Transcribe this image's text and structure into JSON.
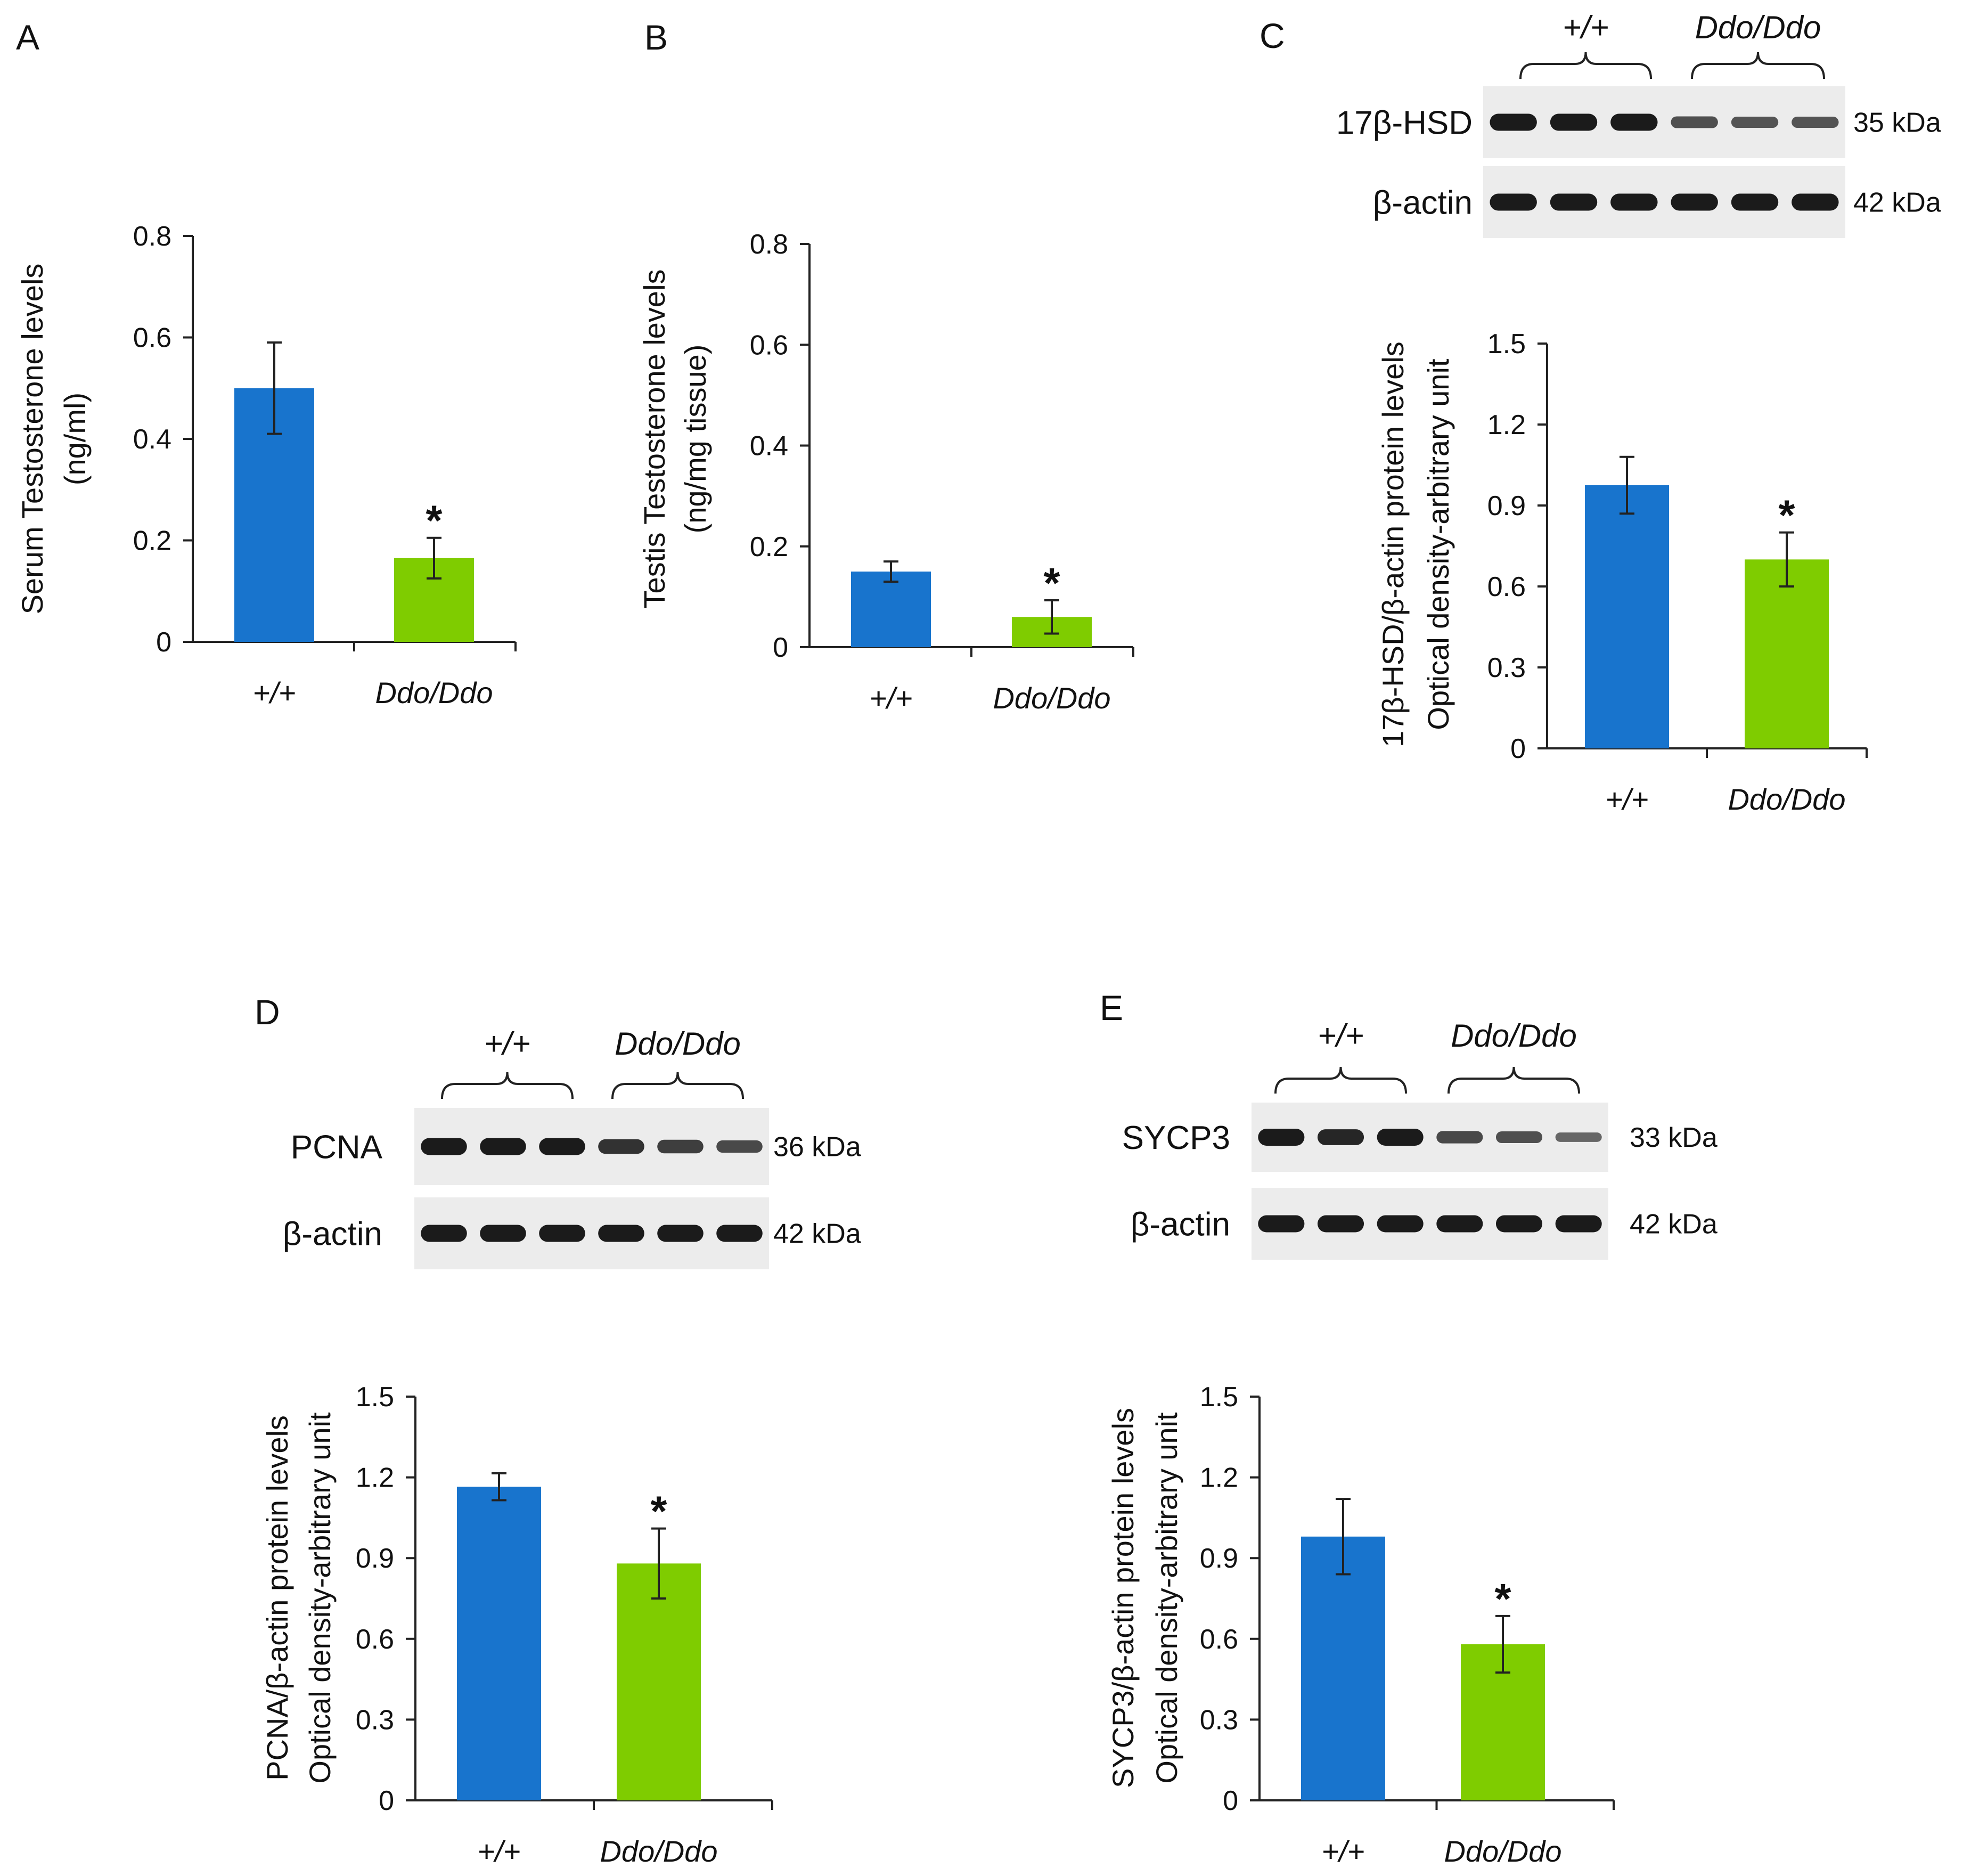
{
  "colors": {
    "wt": "#1874CD",
    "mut": "#7FCC00",
    "axis": "#222222",
    "band": "#1b1b1b",
    "membrane": "#ececec"
  },
  "genotypes": [
    "+/+",
    "Ddo/Ddo"
  ],
  "chart_data": [
    {
      "id": "A",
      "type": "bar",
      "letter": "A",
      "ylabel": [
        "Serum Testosterone levels",
        "(ng/ml)"
      ],
      "categories": [
        "+/+",
        "Ddo/Ddo"
      ],
      "values": [
        0.5,
        0.165
      ],
      "errors": [
        0.09,
        0.04
      ],
      "significance": [
        "",
        "*"
      ],
      "ylim": [
        0,
        0.8
      ],
      "ticks": [
        0,
        0.2,
        0.4,
        0.6,
        0.8
      ],
      "tick_labels": [
        "0",
        "0.2",
        "0.4",
        "0.6",
        "0.8"
      ]
    },
    {
      "id": "B",
      "type": "bar",
      "letter": "B",
      "ylabel": [
        "Testis Testosterone levels",
        "(ng/mg tissue)"
      ],
      "categories": [
        "+/+",
        "Ddo/Ddo"
      ],
      "values": [
        0.15,
        0.06
      ],
      "errors": [
        0.02,
        0.033
      ],
      "significance": [
        "",
        "*"
      ],
      "ylim": [
        0,
        0.8
      ],
      "ticks": [
        0,
        0.2,
        0.4,
        0.6,
        0.8
      ],
      "tick_labels": [
        "0",
        "0.2",
        "0.4",
        "0.6",
        "0.8"
      ]
    },
    {
      "id": "C",
      "type": "bar",
      "letter": "C",
      "ylabel": [
        "17β-HSD/β-actin protein levels",
        "Optical density-arbitrary unit"
      ],
      "categories": [
        "+/+",
        "Ddo/Ddo"
      ],
      "values": [
        0.975,
        0.7
      ],
      "errors": [
        0.105,
        0.1
      ],
      "significance": [
        "",
        "*"
      ],
      "ylim": [
        0,
        1.5
      ],
      "ticks": [
        0,
        0.3,
        0.6,
        0.9,
        1.2,
        1.5
      ],
      "tick_labels": [
        "0",
        "0.3",
        "0.6",
        "0.9",
        "1.2",
        "1.5"
      ]
    },
    {
      "id": "D",
      "type": "bar",
      "letter": "D",
      "ylabel": [
        "PCNA/β-actin protein levels",
        "Optical density-arbitrary unit"
      ],
      "categories": [
        "+/+",
        "Ddo/Ddo"
      ],
      "values": [
        1.165,
        0.88
      ],
      "errors": [
        0.05,
        0.13
      ],
      "significance": [
        "",
        "*"
      ],
      "ylim": [
        0,
        1.5
      ],
      "ticks": [
        0,
        0.3,
        0.6,
        0.9,
        1.2,
        1.5
      ],
      "tick_labels": [
        "0",
        "0.3",
        "0.6",
        "0.9",
        "1.2",
        "1.5"
      ]
    },
    {
      "id": "E",
      "type": "bar",
      "letter": "E",
      "ylabel": [
        "SYCP3/β-actin protein levels",
        "Optical density-arbitrary unit"
      ],
      "categories": [
        "+/+",
        "Ddo/Ddo"
      ],
      "values": [
        0.98,
        0.58
      ],
      "errors": [
        0.14,
        0.105
      ],
      "significance": [
        "",
        "*"
      ],
      "ylim": [
        0,
        1.5
      ],
      "ticks": [
        0,
        0.3,
        0.6,
        0.9,
        1.2,
        1.5
      ],
      "tick_labels": [
        "0",
        "0.3",
        "0.6",
        "0.9",
        "1.2",
        "1.5"
      ]
    }
  ],
  "blots": [
    {
      "panel": "C",
      "group_labels": [
        "+/+",
        "Ddo/Ddo"
      ],
      "rows": [
        {
          "protein": "17β-HSD",
          "size": "35 kDa",
          "intensity": [
            1,
            1,
            1,
            0.55,
            0.5,
            0.5
          ]
        },
        {
          "protein": "β-actin",
          "size": "42 kDa",
          "intensity": [
            1,
            1,
            1,
            1,
            1,
            1
          ]
        }
      ]
    },
    {
      "panel": "D",
      "group_labels": [
        "+/+",
        "Ddo/Ddo"
      ],
      "rows": [
        {
          "protein": "PCNA",
          "size": "36 kDa",
          "intensity": [
            1,
            1,
            1,
            0.8,
            0.7,
            0.6
          ]
        },
        {
          "protein": "β-actin",
          "size": "42 kDa",
          "intensity": [
            1,
            1,
            1,
            1,
            1,
            1
          ]
        }
      ]
    },
    {
      "panel": "E",
      "group_labels": [
        "+/+",
        "Ddo/Ddo"
      ],
      "rows": [
        {
          "protein": "SYCP3",
          "size": "33 kDa",
          "intensity": [
            1,
            0.9,
            1,
            0.6,
            0.55,
            0.35
          ]
        },
        {
          "protein": "β-actin",
          "size": "42 kDa",
          "intensity": [
            1,
            1,
            1,
            1,
            1,
            1
          ]
        }
      ]
    }
  ]
}
